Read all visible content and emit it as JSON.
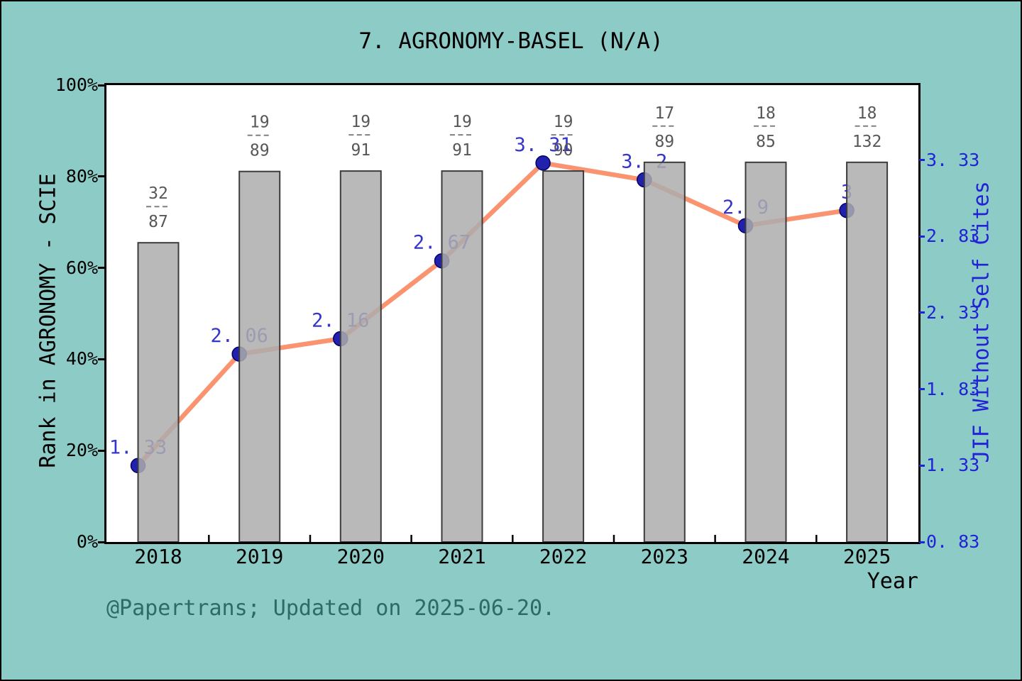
{
  "title": "7. AGRONOMY-BASEL (N/A)",
  "footer": "@Papertrans; Updated on 2025-06-20.",
  "colors": {
    "background": "#8ccbc6",
    "frame": "#000000",
    "bar_fill": "#adadad",
    "bar_edge": "#3c3c3c",
    "line": "#fa9470",
    "marker": "#2121ad",
    "marker_edge": "#000066",
    "value_label": "#3535cd",
    "right_axis": "#2222d6",
    "fraction_label": "#575757",
    "footer_text": "#2d6b64"
  },
  "chart_data": [
    {
      "type": "bar",
      "title": "7. AGRONOMY-BASEL (N/A)",
      "categories": [
        "2018",
        "2019",
        "2020",
        "2021",
        "2022",
        "2023",
        "2024",
        "2025"
      ],
      "values": [
        65.5,
        81.1,
        81.2,
        81.2,
        81.2,
        83.1,
        83.1,
        83.1
      ],
      "bar_labels": [
        "32/87",
        "19/89",
        "19/91",
        "19/91",
        "19/90",
        "17/89",
        "18/85",
        "18/132"
      ],
      "xlabel": "Year",
      "ylabel": "Rank in AGRONOMY - SCIE",
      "ylim": [
        0,
        100
      ],
      "yticks": [
        0,
        20,
        40,
        60,
        80,
        100
      ],
      "ytick_labels": [
        "0%",
        "20%",
        "40%",
        "60%",
        "80%",
        "100%"
      ],
      "grid": false,
      "legend": "none",
      "bar_fill_opacity": 0.85
    },
    {
      "type": "line",
      "x": [
        "2018",
        "2019",
        "2020",
        "2021",
        "2022",
        "2023",
        "2024",
        "2025"
      ],
      "values": [
        1.33,
        2.06,
        2.16,
        2.67,
        3.31,
        3.2,
        2.9,
        3
      ],
      "point_labels": [
        "1. 33",
        "2. 06",
        "2. 16",
        "2. 67",
        "3. 31",
        "3. 2",
        "2. 9",
        "3"
      ],
      "ylabel": "JIF Without Self Cites",
      "ylim": [
        0.83,
        3.82
      ],
      "yticks": [
        0.83,
        1.33,
        1.83,
        2.33,
        2.83,
        3.33
      ],
      "ytick_labels": [
        "0. 83",
        "1. 33",
        "1. 83",
        "2. 33",
        "2. 83",
        "3. 33"
      ],
      "grid": false,
      "legend": "none"
    }
  ]
}
